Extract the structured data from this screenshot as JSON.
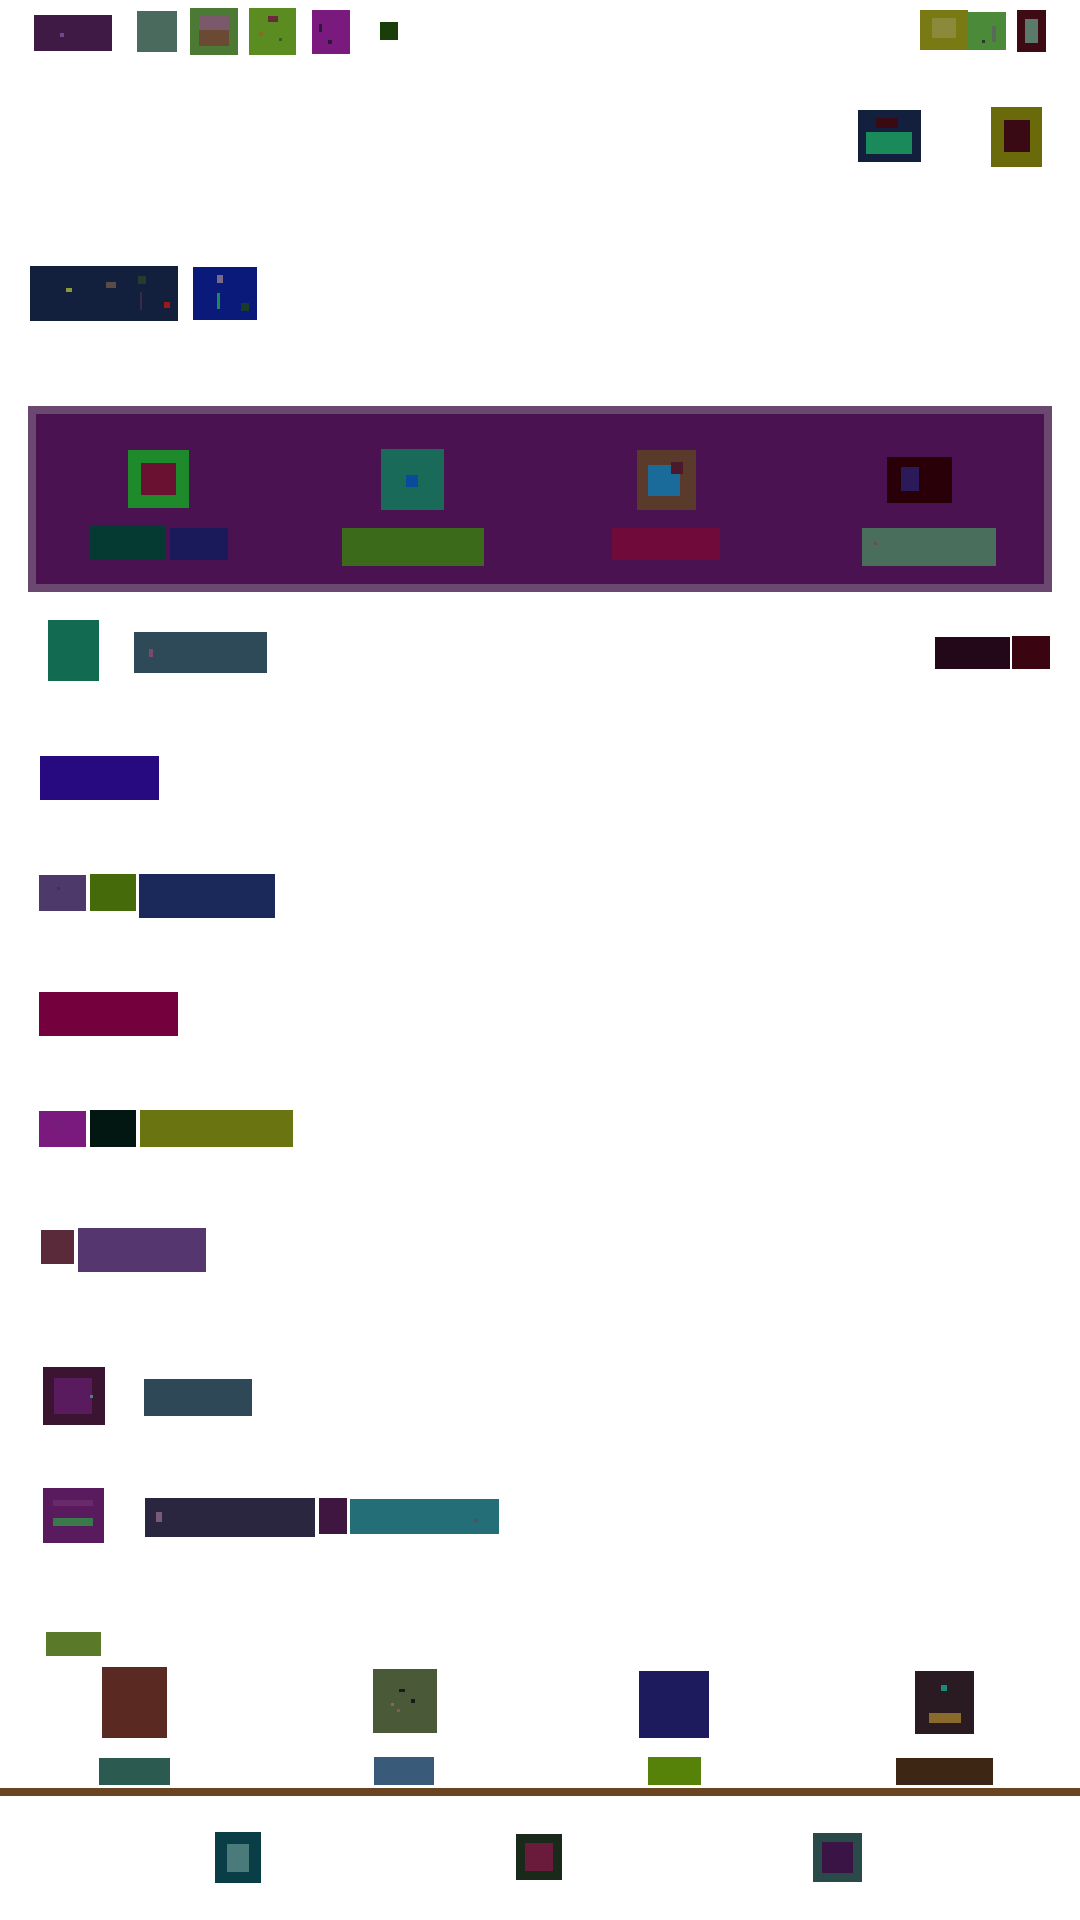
{
  "theme": {
    "background": "#ffffff",
    "hero_background": "#4a1250",
    "hero_border": "#6a4870",
    "divider": "#6a4320"
  },
  "icons": [
    "app-logo-icon",
    "gallery-icon",
    "photo-icon",
    "map-icon",
    "shopping-icon",
    "status-dot-icon",
    "banner-icon",
    "media-icon",
    "close-icon",
    "profile-icon",
    "wallet-icon",
    "home-icon",
    "search-icon",
    "library-icon"
  ],
  "header": {
    "colors": [
      "#3e1a44",
      "#4a6a5e",
      "#4c7a34",
      "#5a8c22",
      "#7a1a7e",
      "#1a3e0a",
      "#7a7a14",
      "#4a8a38",
      "#3e0a14"
    ]
  },
  "hero": {
    "tiles": [
      {
        "frame": "#1e8a2c",
        "inner": "#6a1030",
        "label_colors": [
          "#053a32",
          "#1a1a5a"
        ]
      },
      {
        "frame": "#1a6a5a",
        "inner": "#0a4a9a",
        "label_colors": [
          "#3a6a1a"
        ]
      },
      {
        "frame": "#5a3a2a",
        "inner": "#1a6a9a",
        "label_colors": [
          "#700a3a"
        ]
      },
      {
        "frame": "#2a0008",
        "inner": "#2a1a5a",
        "label_colors": [
          "#4a6e5c"
        ]
      }
    ]
  },
  "list_rows": [
    {
      "colors": [
        "#126a50",
        "#2e4a58"
      ]
    },
    {
      "colors": [
        "#280a80"
      ]
    },
    {
      "colors": [
        "#4e3a6a",
        "#446a0a",
        "#1a285a"
      ]
    },
    {
      "colors": [
        "#74003e"
      ]
    },
    {
      "colors": [
        "#7a1a7e",
        "#021612",
        "#6a7410"
      ]
    },
    {
      "colors": [
        "#5a2a3a",
        "#56366e"
      ]
    },
    {
      "colors": [
        "#3a1430",
        "#2e4858"
      ]
    },
    {
      "colors": [
        "#5a1a5e",
        "#2a2640",
        "#3e1640",
        "#246e78"
      ]
    }
  ],
  "grid": {
    "header_color": "#5a7a2a",
    "cells": [
      {
        "icon": "#5a2a22",
        "label": "#2a5a50"
      },
      {
        "icon": "#4a5a38",
        "label": "#3a5a7a"
      },
      {
        "icon": "#1e1a5e",
        "label": "#56820a"
      },
      {
        "icon": "#2a1a22",
        "label": "#3e2614"
      }
    ]
  },
  "bottom_nav": {
    "items": [
      {
        "frame": "#0a3e46",
        "inner": "#4a7a7a"
      },
      {
        "frame": "#1a2a1a",
        "inner": "#6a1a3a"
      },
      {
        "frame": "#2a4a4a",
        "inner": "#3a1444"
      }
    ]
  }
}
